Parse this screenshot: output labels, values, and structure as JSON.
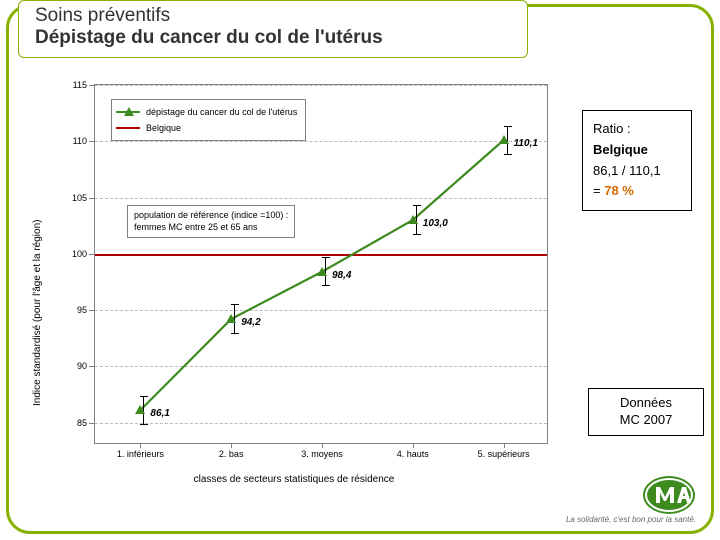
{
  "frame": {
    "border_color": "#86b100",
    "radius": 24
  },
  "title": {
    "line1": "Soins préventifs",
    "line2": "Dépistage du cancer du col de l'utérus"
  },
  "chart": {
    "type": "line",
    "series_color": "#3d8b1f",
    "ref_color": "#b00000",
    "grid_color": "#bababa",
    "axis_color": "#808080",
    "background_color": "#ffffff",
    "ylim": [
      83,
      115
    ],
    "ytick_step": 5,
    "yticks": [
      85,
      90,
      95,
      100,
      105,
      110,
      115
    ],
    "ref_value": 100,
    "ytitle": "Indice standardisé (pour l'âge et la région)",
    "xtitle": "classes de secteurs statistiques de résidence",
    "categories": [
      "1. inférieurs",
      "2. bas",
      "3. moyens",
      "4. hauts",
      "5. supérieurs"
    ],
    "values": [
      86.1,
      94.2,
      98.4,
      103.0,
      110.1
    ],
    "err": [
      1.3,
      1.3,
      1.3,
      1.3,
      1.3
    ],
    "value_labels": [
      "86,1",
      "94,2",
      "98,4",
      "103,0",
      "110,1"
    ],
    "legend": {
      "row1": "dépistage du cancer du col de l'utérus",
      "row2": "Belgique"
    },
    "refbox": {
      "line1": "population de référence (indice =100) :",
      "line2": "femmes MC entre 25 et 65 ans"
    }
  },
  "side": {
    "heading": "Ratio :",
    "region": "Belgique",
    "ratio_text": "86,1 / 110,1",
    "eq_prefix": "= ",
    "eq_value": "78 %"
  },
  "footer": {
    "line1": "Données",
    "line2": "MC 2007"
  },
  "logo": {
    "bg": "#3d8b1f",
    "fg": "#ffffff",
    "tagline": "La solidarité, c'est bon pour la santé."
  }
}
